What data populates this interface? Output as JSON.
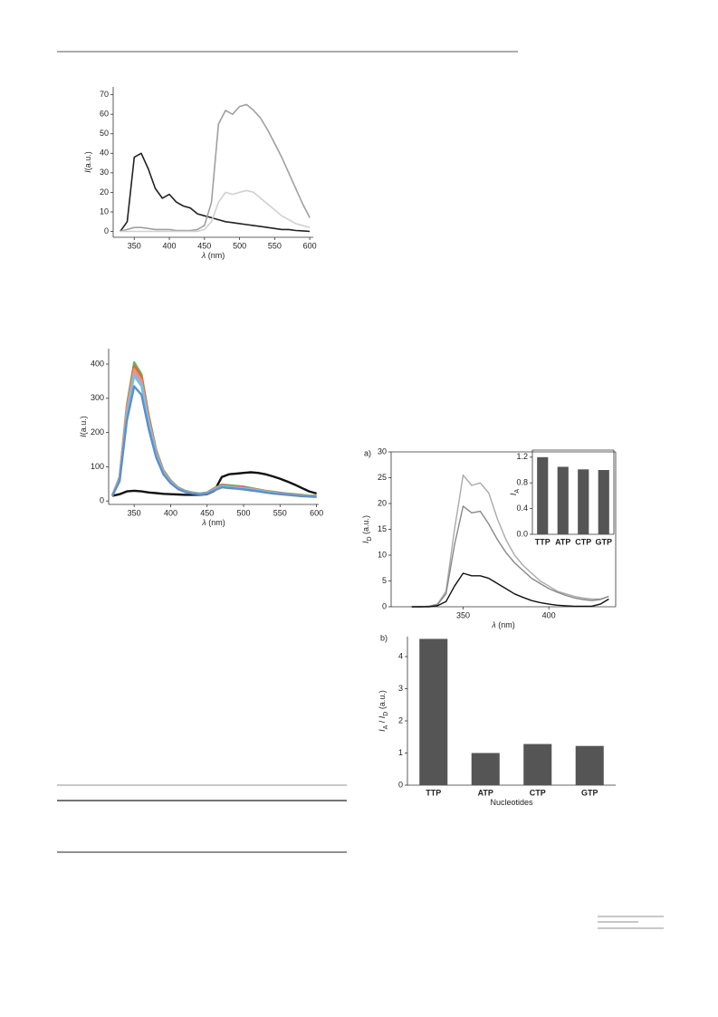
{
  "chart_data": [
    {
      "type": "line",
      "xlabel": [
        {
          "text": "λ",
          "style": "italic"
        },
        {
          "text": " (nm)",
          "style": "normal"
        }
      ],
      "ylabel": [
        {
          "text": "I",
          "style": "italic"
        },
        {
          "text": "(a.u.)",
          "style": "normal"
        }
      ],
      "x": [
        330,
        340,
        350,
        360,
        370,
        380,
        390,
        400,
        410,
        420,
        430,
        440,
        450,
        460,
        470,
        480,
        490,
        500,
        510,
        520,
        530,
        540,
        550,
        560,
        570,
        580,
        590,
        600
      ],
      "xlim": [
        320,
        605
      ],
      "xticks": [
        350,
        400,
        450,
        500,
        550,
        600
      ],
      "ylim": [
        -3,
        74
      ],
      "yticks": [
        0,
        10,
        20,
        30,
        40,
        50,
        60,
        70
      ],
      "series": [
        {
          "color": "#222222",
          "values": [
            0,
            5,
            38,
            40,
            32,
            22,
            17,
            19,
            15,
            13,
            12,
            9,
            8,
            7,
            6,
            5,
            4.5,
            4,
            3.5,
            3,
            2.5,
            2,
            1.5,
            1,
            1,
            0.5,
            0.3,
            0
          ]
        },
        {
          "color": "#a0a0a0",
          "values": [
            0,
            1,
            2,
            2,
            1.5,
            1,
            1,
            1,
            0.5,
            0.5,
            0.5,
            1,
            3,
            15,
            55,
            62,
            60,
            64,
            65,
            62,
            58,
            52,
            45,
            38,
            30,
            22,
            14,
            7
          ]
        },
        {
          "color": "#d0d0d0",
          "values": [
            0,
            0,
            0,
            0,
            0,
            0,
            0,
            0,
            0,
            0,
            0,
            0,
            1,
            5,
            15,
            20,
            19,
            20,
            21,
            20,
            17,
            14,
            11,
            8,
            6,
            4,
            3,
            2
          ]
        }
      ]
    },
    {
      "type": "line",
      "xlabel": [
        {
          "text": "λ",
          "style": "italic"
        },
        {
          "text": " (nm)",
          "style": "normal"
        }
      ],
      "ylabel": [
        {
          "text": "I",
          "style": "italic"
        },
        {
          "text": "(a.u.)",
          "style": "normal"
        }
      ],
      "x": [
        320,
        330,
        340,
        350,
        360,
        370,
        380,
        390,
        400,
        410,
        420,
        430,
        440,
        450,
        460,
        470,
        480,
        490,
        500,
        510,
        520,
        530,
        540,
        550,
        560,
        570,
        580,
        590,
        600
      ],
      "xlim": [
        315,
        603
      ],
      "xticks": [
        350,
        400,
        450,
        500,
        550,
        600
      ],
      "ylim": [
        -10,
        445
      ],
      "yticks": [
        0,
        100,
        200,
        300,
        400
      ],
      "series": [
        {
          "color": "#111111",
          "values": [
            15,
            20,
            28,
            30,
            28,
            25,
            23,
            21,
            20,
            19,
            18,
            18,
            18,
            20,
            30,
            70,
            78,
            80,
            82,
            84,
            82,
            78,
            72,
            65,
            57,
            48,
            38,
            28,
            22
          ]
        },
        {
          "color": "#5cb85c",
          "values": [
            15,
            70,
            280,
            405,
            370,
            250,
            150,
            90,
            60,
            40,
            30,
            25,
            22,
            25,
            38,
            48,
            46,
            44,
            42,
            38,
            34,
            30,
            27,
            24,
            22,
            20,
            18,
            16,
            15
          ]
        },
        {
          "color": "#e0605e",
          "values": [
            15,
            68,
            275,
            395,
            362,
            245,
            147,
            88,
            58,
            39,
            29,
            24,
            21,
            24,
            36,
            46,
            44,
            42,
            40,
            36,
            33,
            29,
            26,
            23,
            21,
            19,
            17,
            15,
            14
          ]
        },
        {
          "color": "#e8a040",
          "values": [
            15,
            66,
            268,
            385,
            352,
            238,
            143,
            86,
            57,
            38,
            28,
            24,
            21,
            23,
            35,
            44,
            42,
            40,
            38,
            35,
            32,
            28,
            25,
            22,
            20,
            18,
            16,
            15,
            13
          ]
        },
        {
          "color": "#e090c0",
          "values": [
            15,
            64,
            260,
            375,
            345,
            232,
            140,
            84,
            56,
            37,
            28,
            23,
            20,
            23,
            34,
            43,
            41,
            39,
            37,
            34,
            31,
            27,
            24,
            22,
            19,
            17,
            16,
            14,
            13
          ]
        },
        {
          "color": "#6ec6e0",
          "values": [
            15,
            62,
            250,
            365,
            335,
            225,
            136,
            82,
            54,
            36,
            27,
            23,
            20,
            22,
            33,
            42,
            40,
            38,
            36,
            33,
            30,
            27,
            24,
            21,
            19,
            17,
            15,
            14,
            12
          ]
        },
        {
          "color": "#5b8fd0",
          "values": [
            15,
            58,
            235,
            335,
            310,
            210,
            128,
            78,
            52,
            35,
            26,
            22,
            19,
            21,
            31,
            40,
            38,
            36,
            34,
            31,
            28,
            25,
            22,
            20,
            18,
            16,
            14,
            13,
            12
          ]
        }
      ]
    },
    {
      "type": "line",
      "panel_label": "a)",
      "xlabel": [
        {
          "text": "λ",
          "style": "italic"
        },
        {
          "text": " (nm)",
          "style": "normal"
        }
      ],
      "ylabel": [
        {
          "text": "I",
          "style": "italic"
        },
        {
          "text": "D",
          "style": "sub"
        },
        {
          "text": " (a.u.)",
          "style": "normal"
        }
      ],
      "x": [
        320,
        325,
        330,
        335,
        340,
        345,
        350,
        355,
        360,
        365,
        370,
        375,
        380,
        385,
        390,
        395,
        400,
        405,
        410,
        415,
        420,
        425,
        430,
        435
      ],
      "xlim": [
        308,
        439
      ],
      "xticks": [
        350,
        400
      ],
      "ylim": [
        0,
        30
      ],
      "yticks": [
        0,
        5,
        10,
        15,
        20,
        25,
        30
      ],
      "series": [
        {
          "color": "#aaaaaa",
          "values": [
            0,
            0,
            0.1,
            0.5,
            3,
            15,
            25.5,
            23.5,
            24,
            22,
            17,
            13,
            10,
            8,
            6.5,
            5,
            4,
            3,
            2.5,
            2,
            1.7,
            1.5,
            1.5,
            2
          ]
        },
        {
          "color": "#888888",
          "values": [
            0,
            0,
            0.1,
            0.4,
            2.5,
            12,
            19.5,
            18.2,
            18.5,
            16,
            13,
            10.5,
            8.5,
            7,
            5.5,
            4.5,
            3.5,
            2.8,
            2.2,
            1.7,
            1.4,
            1.2,
            1.4,
            2
          ]
        },
        {
          "color": "#111111",
          "values": [
            0,
            0,
            0,
            0.2,
            1,
            4,
            6.5,
            6,
            6,
            5.5,
            4.5,
            3.5,
            2.5,
            1.8,
            1.2,
            0.8,
            0.5,
            0.3,
            0.2,
            0.1,
            0.1,
            0.1,
            0.5,
            1.5
          ]
        }
      ]
    },
    {
      "type": "bar",
      "ylabel": [
        {
          "text": "I",
          "style": "italic"
        },
        {
          "text": "A",
          "style": "sub"
        }
      ],
      "categories": [
        "TTP",
        "ATP",
        "CTP",
        "GTP"
      ],
      "values": [
        1.2,
        1.05,
        1.01,
        1.0
      ],
      "color": "#555555",
      "ylim": [
        0,
        1.31
      ],
      "yticks": [
        {
          "value": 0,
          "label": "0.0"
        },
        0.4,
        0.8,
        1.2
      ]
    },
    {
      "type": "bar",
      "panel_label": "b)",
      "xlabel": [
        {
          "text": "Nucleotides",
          "style": "normal"
        }
      ],
      "ylabel": [
        {
          "text": "I",
          "style": "italic"
        },
        {
          "text": "A",
          "style": "sub"
        },
        {
          "text": " / ",
          "style": "normal"
        },
        {
          "text": "I",
          "style": "italic"
        },
        {
          "text": "D",
          "style": "sub"
        },
        {
          "text": " (a.u.)",
          "style": "normal"
        }
      ],
      "categories": [
        "TTP",
        "ATP",
        "CTP",
        "GTP"
      ],
      "values": [
        4.55,
        1.0,
        1.28,
        1.22
      ],
      "color": "#555555",
      "ylim": [
        0,
        4.62
      ],
      "yticks": [
        0,
        1,
        2,
        3,
        4
      ]
    }
  ]
}
